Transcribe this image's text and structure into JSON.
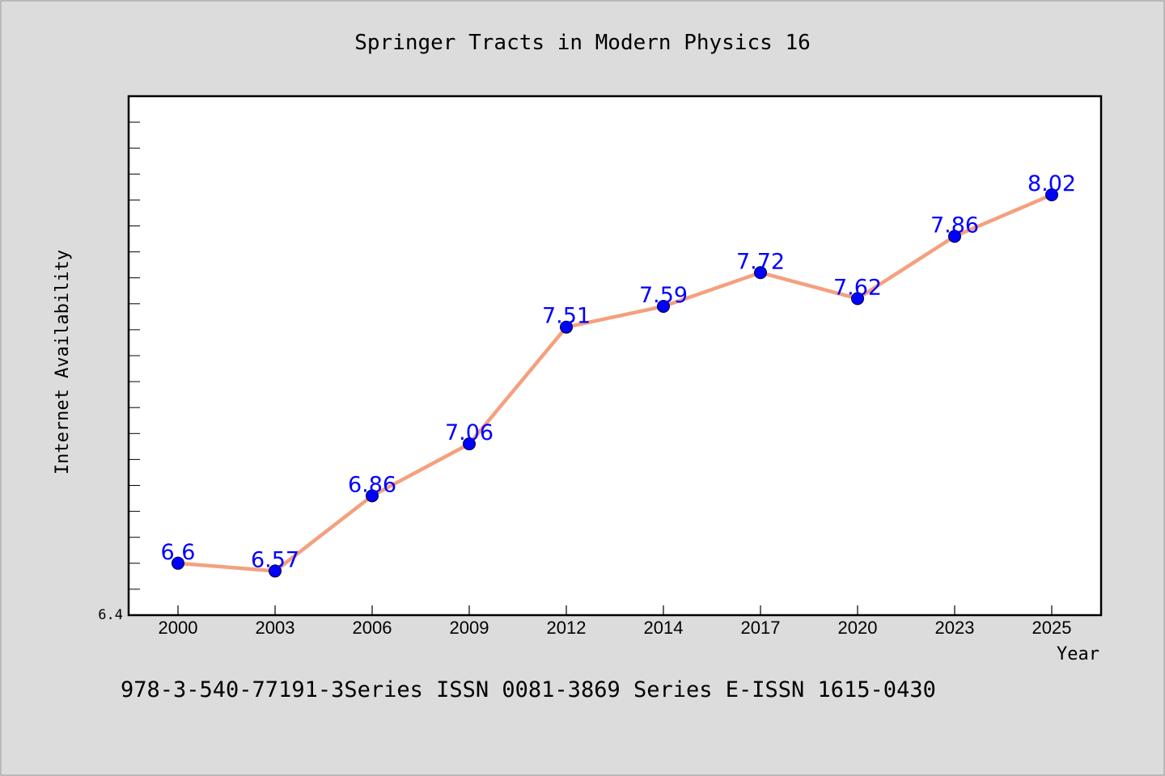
{
  "chart_data": {
    "type": "line",
    "title": "Springer Tracts in Modern Physics 16",
    "xlabel": "Year",
    "ylabel": "Internet Availability",
    "categories": [
      "2000",
      "2003",
      "2006",
      "2009",
      "2012",
      "2014",
      "2017",
      "2020",
      "2023",
      "2025"
    ],
    "values": [
      6.6,
      6.57,
      6.86,
      7.06,
      7.51,
      7.59,
      7.72,
      7.62,
      7.86,
      8.02
    ],
    "data_labels": [
      "6.6",
      "6.57",
      "6.86",
      "7.06",
      "7.51",
      "7.59",
      "7.72",
      "7.62",
      "7.86",
      "8.02"
    ],
    "ymin_label": "6.4",
    "ylim": [
      6.4,
      8.4
    ],
    "grid": false,
    "legend": "none",
    "line_color": "#f4a07e",
    "marker_color": "#0000ff",
    "label_color": "#0000ff"
  },
  "footer": {
    "text": "978-3-540-77191-3Series ISSN 0081-3869 Series E-ISSN 1615-0430"
  }
}
